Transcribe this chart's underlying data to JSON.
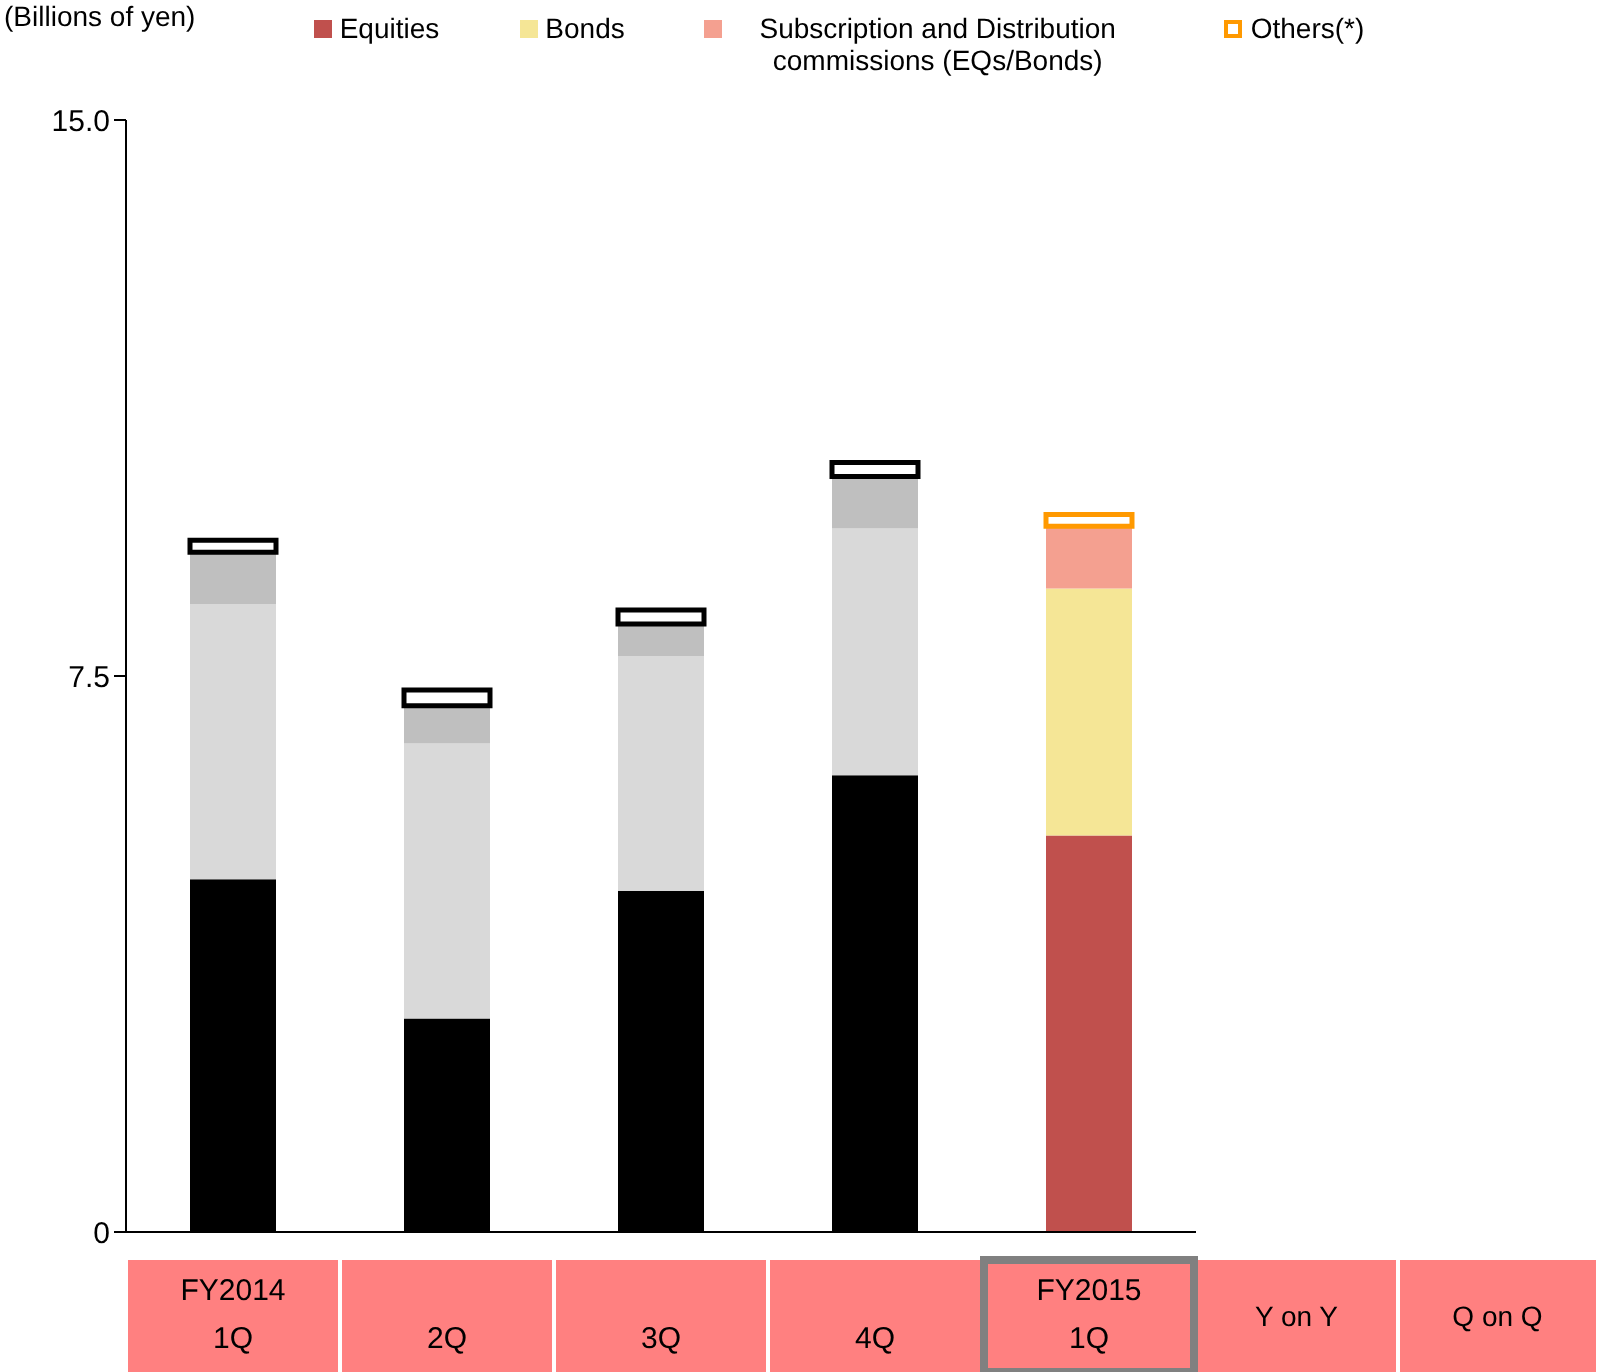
{
  "chart_data": {
    "type": "bar",
    "stacked": true,
    "ylabel": "(Billions of yen)",
    "categories": [
      "FY2014 1Q",
      "2Q",
      "3Q",
      "4Q",
      "FY2015 1Q"
    ],
    "series": [
      {
        "name": "Equities",
        "color": "#c0504d",
        "colors": [
          "#000000",
          "#000000",
          "#000000",
          "#000000",
          "#c0504d"
        ],
        "values": [
          4.76,
          2.88,
          4.6,
          6.16,
          5.35
        ]
      },
      {
        "name": "Bonds",
        "color": "#f5e696",
        "colors": [
          "#d9d9d9",
          "#d9d9d9",
          "#d9d9d9",
          "#d9d9d9",
          "#f5e696"
        ],
        "values": [
          3.71,
          3.71,
          3.17,
          3.33,
          3.33
        ]
      },
      {
        "name": "Subscription and Distribution commissions (EQs/Bonds)",
        "color": "#f4a090",
        "colors": [
          "#bfbfbf",
          "#bfbfbf",
          "#bfbfbf",
          "#bfbfbf",
          "#f4a090"
        ],
        "values": [
          0.7,
          0.51,
          0.43,
          0.7,
          0.84
        ]
      },
      {
        "name": "Others(*)",
        "color": "#ff9900",
        "colors": [
          "#000000",
          "#000000",
          "#000000",
          "#000000",
          "#ff9900"
        ],
        "values": [
          0.16,
          0.21,
          0.19,
          0.19,
          0.16
        ]
      }
    ],
    "ylim": [
      0,
      15
    ],
    "yticks": [
      0,
      7.5,
      {
        "value": 15,
        "label": "15.0"
      }
    ],
    "legend": "top",
    "annotations": [
      "Y on Y",
      "Q on Q"
    ]
  }
}
